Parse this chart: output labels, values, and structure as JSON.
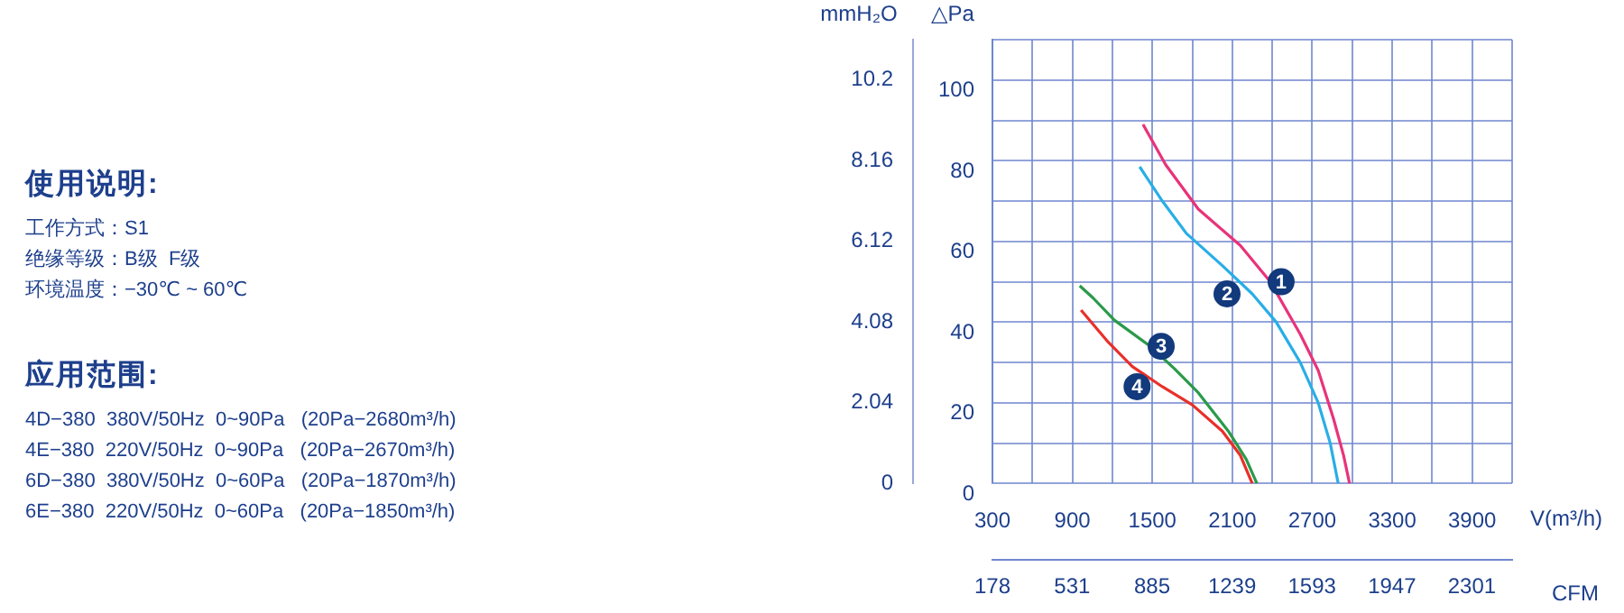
{
  "chart_data": [
    {
      "type": "other",
      "title": "使用说明:",
      "annotations": [
        "工作方式：S1",
        "绝缘等级：B级  F级",
        "环境温度：−30℃ ~ 60℃"
      ]
    },
    {
      "type": "other",
      "title": "应用范围:",
      "annotations": [
        "4D−380  380V/50Hz  0~90Pa   (20Pa−2680m³/h)",
        "4E−380  220V/50Hz  0~90Pa   (20Pa−2670m³/h)",
        "6D−380  380V/50Hz  0~60Pa   (20Pa−1870m³/h)",
        "6E−380  220V/50Hz  0~60Pa   (20Pa−1850m³/h)"
      ]
    },
    {
      "type": "line",
      "xlabel": "V(m³/h)",
      "x2label": "CFM",
      "ylabel": "△Pa",
      "y2label": "mmH₂O",
      "grid": true,
      "legend": false,
      "marker": "none",
      "line_style": "solid",
      "xlim": [
        300,
        4200
      ],
      "xticks": [
        300,
        {
          "value": 600,
          "label": null
        },
        900,
        {
          "value": 1200,
          "label": null
        },
        1500,
        {
          "value": 1800,
          "label": null
        },
        2100,
        {
          "value": 2400,
          "label": null
        },
        2700,
        {
          "value": 3000,
          "label": null
        },
        3300,
        {
          "value": 3600,
          "label": null
        },
        3900,
        {
          "value": 4200,
          "label": null
        }
      ],
      "x2lim": [
        178,
        2479
      ],
      "x2ticks": [
        178,
        531,
        885,
        1239,
        1593,
        1947,
        2301
      ],
      "ylim": [
        0,
        110
      ],
      "yticks": [
        0,
        {
          "value": 10,
          "label": null
        },
        20,
        {
          "value": 30,
          "label": null
        },
        40,
        {
          "value": 50,
          "label": null
        },
        60,
        {
          "value": 70,
          "label": null
        },
        80,
        {
          "value": 90,
          "label": null
        },
        100,
        {
          "value": 110,
          "label": null
        }
      ],
      "y2lim": [
        0,
        11.22
      ],
      "y2ticks": [
        0,
        2.04,
        4.08,
        6.12,
        8.16,
        10.2
      ],
      "series": [
        {
          "name": "1",
          "color": "#e8337a",
          "x": [
            1430,
            1600,
            1845,
            2160,
            2385,
            2610,
            2745,
            2860,
            2935,
            2980
          ],
          "values": [
            89,
            79,
            68,
            59,
            50,
            37,
            28,
            16,
            7,
            0
          ]
        },
        {
          "name": "2",
          "color": "#29aee6",
          "x": [
            1405,
            1575,
            1755,
            2025,
            2250,
            2430,
            2610,
            2745,
            2835,
            2895
          ],
          "values": [
            78.5,
            70,
            62,
            54,
            47,
            40,
            30,
            20,
            10,
            0
          ]
        },
        {
          "name": "3",
          "color": "#2a9a4a",
          "x": [
            955,
            1055,
            1215,
            1485,
            1665,
            1845,
            2070,
            2205,
            2285
          ],
          "values": [
            49,
            46,
            40.5,
            34,
            28.5,
            22.5,
            13,
            6,
            0
          ]
        },
        {
          "name": "4",
          "color": "#e8302a",
          "x": [
            965,
            1170,
            1350,
            1575,
            1800,
            2025,
            2160,
            2250
          ],
          "values": [
            43,
            35,
            29,
            24,
            19.5,
            13,
            7,
            0
          ]
        }
      ]
    }
  ]
}
